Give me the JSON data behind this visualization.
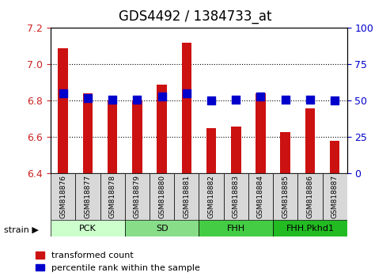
{
  "title": "GDS4492 / 1384733_at",
  "samples": [
    "GSM818876",
    "GSM818877",
    "GSM818878",
    "GSM818879",
    "GSM818880",
    "GSM818881",
    "GSM818882",
    "GSM818883",
    "GSM818884",
    "GSM818885",
    "GSM818886",
    "GSM818887"
  ],
  "transformed_count": [
    7.09,
    6.84,
    6.8,
    6.8,
    6.89,
    7.12,
    6.65,
    6.66,
    6.84,
    6.63,
    6.76,
    6.58
  ],
  "percentile_rank": [
    55,
    52,
    51,
    51,
    53,
    55,
    50,
    51,
    53,
    51,
    51,
    50
  ],
  "ylim_left": [
    6.4,
    7.2
  ],
  "ylim_right": [
    0,
    100
  ],
  "yticks_left": [
    6.4,
    6.6,
    6.8,
    7.0,
    7.2
  ],
  "yticks_right": [
    0,
    25,
    50,
    75,
    100
  ],
  "bar_color": "#cc1111",
  "dot_color": "#0000cc",
  "bar_width": 0.4,
  "baseline": 6.4,
  "tick_label_color_left": "#cc2222",
  "tick_label_color_right": "#0000cc",
  "title_fontsize": 12,
  "tick_fontsize": 9,
  "legend_fontsize": 8,
  "dot_size": 55,
  "group_defs": [
    {
      "label": "PCK",
      "cols": [
        0,
        1,
        2
      ],
      "color": "#ccffcc"
    },
    {
      "label": "SD",
      "cols": [
        3,
        4,
        5
      ],
      "color": "#88dd88"
    },
    {
      "label": "FHH",
      "cols": [
        6,
        7,
        8
      ],
      "color": "#44cc44"
    },
    {
      "label": "FHH.Pkhd1",
      "cols": [
        9,
        10,
        11
      ],
      "color": "#22bb22"
    }
  ]
}
